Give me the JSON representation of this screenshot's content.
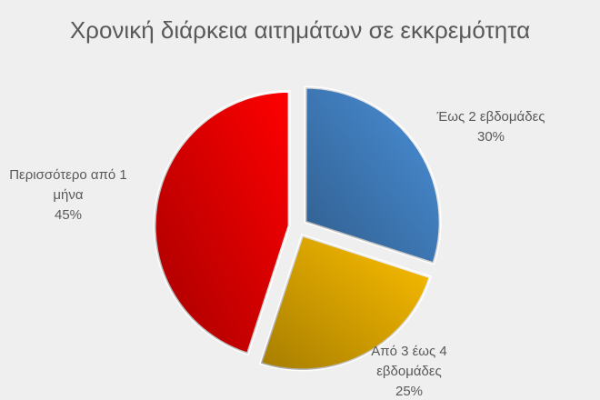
{
  "chart_data": {
    "type": "pie",
    "title": "Χρονική διάρκεια αιτημάτων σε εκκρεμότητα",
    "categories": [
      "Έως 2 εβδομάδες",
      "Από 3 έως 4 εβδομάδες",
      "Περισσότερο από 1 μήνα"
    ],
    "values": [
      30,
      25,
      45
    ],
    "value_labels": [
      "30%",
      "25%",
      "45%"
    ],
    "colors": [
      "#4a90d9",
      "#ffc000",
      "#ff0000"
    ]
  }
}
